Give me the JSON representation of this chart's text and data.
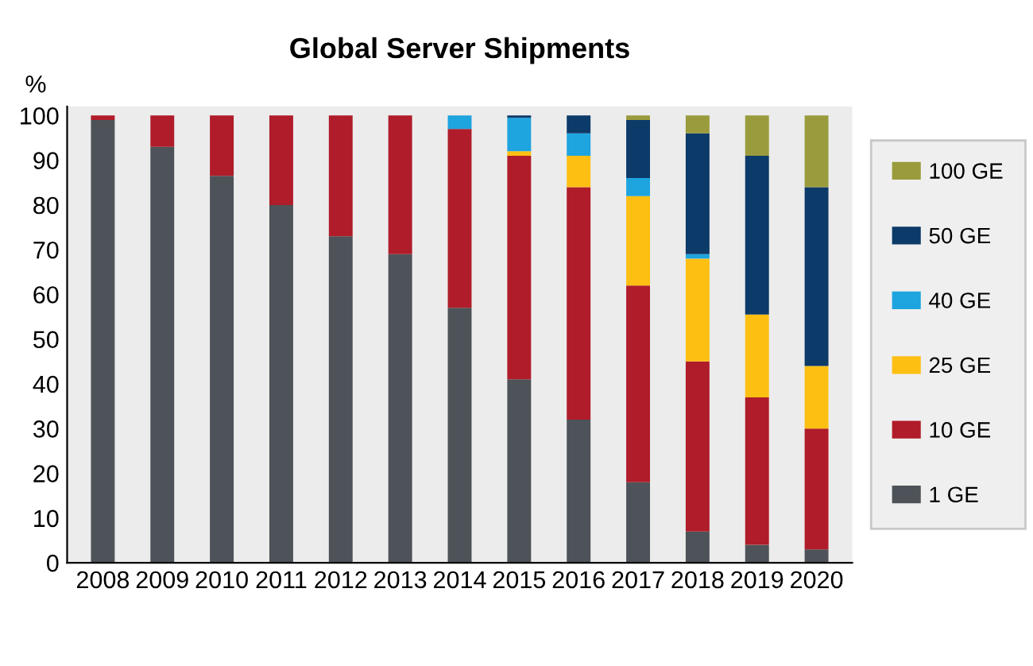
{
  "chart_data": {
    "type": "bar",
    "title": "Global Server Shipments",
    "ylabel": "%",
    "stacked": true,
    "categories": [
      "2008",
      "2009",
      "2010",
      "2011",
      "2012",
      "2013",
      "2014",
      "2015",
      "2016",
      "2017",
      "2018",
      "2019",
      "2020"
    ],
    "series": [
      {
        "name": "1 GE",
        "color": "#4d5358",
        "values": [
          99,
          93,
          86.5,
          80,
          73,
          69,
          57,
          41,
          32,
          18,
          7,
          4,
          3
        ]
      },
      {
        "name": "10 GE",
        "color": "#b01c2a",
        "values": [
          1,
          7,
          13.5,
          20,
          27,
          31,
          40,
          50,
          52,
          44,
          38,
          33,
          27
        ]
      },
      {
        "name": "25 GE",
        "color": "#fdbf12",
        "values": [
          null,
          null,
          null,
          null,
          null,
          null,
          null,
          1,
          7,
          20,
          23,
          18.5,
          14
        ]
      },
      {
        "name": "40 GE",
        "color": "#1ea4df",
        "values": [
          null,
          null,
          null,
          null,
          null,
          null,
          3,
          7.5,
          5,
          4,
          1,
          null,
          null
        ]
      },
      {
        "name": "50 GE",
        "color": "#0c3a69",
        "values": [
          null,
          null,
          null,
          null,
          null,
          null,
          null,
          0.5,
          4,
          13,
          27,
          35.5,
          40
        ]
      },
      {
        "name": "100 GE",
        "color": "#9a9b3c",
        "values": [
          null,
          null,
          null,
          null,
          null,
          null,
          null,
          null,
          null,
          1,
          4,
          9,
          16
        ]
      }
    ],
    "ylim": [
      0,
      102
    ],
    "yticks": [
      0,
      10,
      20,
      30,
      40,
      50,
      60,
      70,
      80,
      90,
      100
    ],
    "grid": false,
    "legend": "right"
  }
}
